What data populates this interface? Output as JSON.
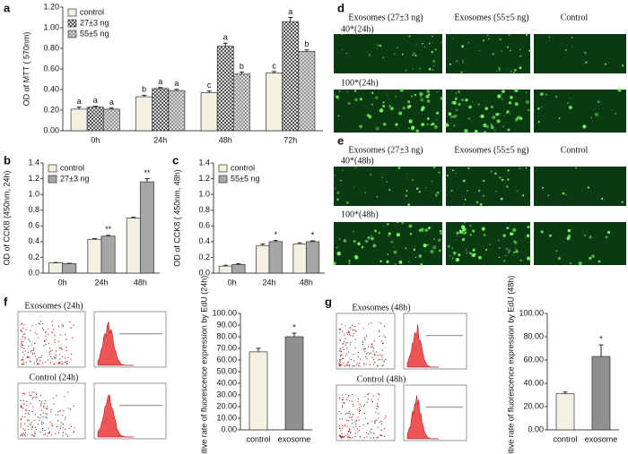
{
  "chart_data": [
    {
      "panel": "a",
      "type": "bar",
      "ylabel": "OD of MTT ( 570nm)",
      "categories": [
        "0h",
        "24h",
        "48h",
        "72h"
      ],
      "ylim": [
        0,
        1.2
      ],
      "yticks": [
        {
          "value": 0,
          "label": "0.00"
        },
        {
          "value": 0.2,
          "label": "0.20"
        },
        {
          "value": 0.4,
          "label": "0.40"
        },
        {
          "value": 0.6,
          "label": "0.60"
        },
        {
          "value": 0.8,
          "label": "0.80"
        },
        {
          "value": 1,
          "label": "1.00"
        },
        {
          "value": 1.2,
          "label": "1.20"
        }
      ],
      "legend": "upper left",
      "series": [
        {
          "name": "control",
          "color": "#f3f1e2",
          "values": [
            0.21,
            0.33,
            0.37,
            0.56
          ],
          "errors": [
            0.02,
            0.015,
            0.015,
            0.015
          ],
          "annotations": [
            "a",
            "b",
            "c",
            "c"
          ]
        },
        {
          "name": "27±3 ng",
          "color": "#555555",
          "pattern": "checker",
          "values": [
            0.23,
            0.41,
            0.82,
            1.06
          ],
          "errors": [
            0.008,
            0.01,
            0.03,
            0.04
          ],
          "annotations": [
            "a",
            "a",
            "a",
            "a"
          ]
        },
        {
          "name": "55±5 ng",
          "color": "#cccccc",
          "pattern": "crosshatch",
          "values": [
            0.21,
            0.39,
            0.55,
            0.77
          ],
          "errors": [
            0.01,
            0.012,
            0.02,
            0.015
          ],
          "annotations": [
            "a",
            "a",
            "b",
            "b"
          ]
        }
      ]
    },
    {
      "panel": "b",
      "type": "bar",
      "ylabel": "OD of CCK8 (450nm, 24h)",
      "categories": [
        "0h",
        "24h",
        "48h"
      ],
      "ylim": [
        0,
        1.4
      ],
      "yticks": [
        {
          "value": 0,
          "label": "0.0"
        },
        0.2,
        0.4,
        0.6,
        0.8,
        {
          "value": 1,
          "label": "1.0"
        },
        1.2,
        1.4
      ],
      "legend": "upper left",
      "series": [
        {
          "name": "control",
          "color": "#f3f1e2",
          "values": [
            0.13,
            0.43,
            0.7
          ],
          "errors": [
            0.005,
            0.008,
            0.01
          ],
          "annotations": [
            null,
            null,
            null
          ]
        },
        {
          "name": "27±3 ng",
          "color": "#a6a6a6",
          "values": [
            0.12,
            0.47,
            1.16
          ],
          "errors": [
            0.005,
            0.01,
            0.04
          ],
          "annotations": [
            null,
            "**",
            "**"
          ]
        }
      ]
    },
    {
      "panel": "c",
      "type": "bar",
      "ylabel": "OD of CCK8 ( 450nm, 48h)",
      "categories": [
        "0h",
        "24h",
        "48h"
      ],
      "ylim": [
        0,
        1.4
      ],
      "yticks": [
        {
          "value": 0,
          "label": "0.0"
        },
        0.2,
        0.4,
        0.6,
        0.8,
        {
          "value": 1,
          "label": "1.0"
        },
        1.2,
        1.4
      ],
      "legend": "upper left",
      "series": [
        {
          "name": "control",
          "color": "#f3f1e2",
          "values": [
            0.09,
            0.35,
            0.37
          ],
          "errors": [
            0.01,
            0.02,
            0.015
          ],
          "annotations": [
            null,
            null,
            null
          ]
        },
        {
          "name": "55±5 ng",
          "color": "#a6a6a6",
          "values": [
            0.11,
            0.4,
            0.4
          ],
          "errors": [
            0.01,
            0.015,
            0.01
          ],
          "annotations": [
            null,
            "*",
            "*"
          ]
        }
      ]
    },
    {
      "panel": "f",
      "type": "bar",
      "ylabel": "Positive rate of fluorescence expression by EdU (24h)",
      "categories": [
        "control",
        "exosome"
      ],
      "ylim": [
        0,
        100
      ],
      "yticks": [
        {
          "value": 0,
          "label": "0.00"
        },
        {
          "value": 10,
          "label": "10.00"
        },
        {
          "value": 20,
          "label": "20.00"
        },
        {
          "value": 30,
          "label": "30.00"
        },
        {
          "value": 40,
          "label": "40.00"
        },
        {
          "value": 50,
          "label": "50.00"
        },
        {
          "value": 60,
          "label": "60.00"
        },
        {
          "value": 70,
          "label": "70.00"
        },
        {
          "value": 80,
          "label": "80.00"
        },
        {
          "value": 90,
          "label": "90.00"
        },
        {
          "value": 100,
          "label": "100.00"
        }
      ],
      "series": [
        {
          "colors": [
            "#f3f1e2",
            "#8f8f8f"
          ],
          "values": [
            67,
            80
          ],
          "errors": [
            3,
            3
          ],
          "annotations": [
            null,
            "*"
          ]
        }
      ]
    },
    {
      "panel": "g",
      "type": "bar",
      "ylabel": "Positive rate of fluorescence expression by EdU (48h)",
      "categories": [
        "control",
        "exosome"
      ],
      "ylim": [
        0,
        100
      ],
      "yticks": [
        {
          "value": 0,
          "label": "0.00"
        },
        {
          "value": 20,
          "label": "20.00"
        },
        {
          "value": 40,
          "label": "40.00"
        },
        {
          "value": 60,
          "label": "60.00"
        },
        {
          "value": 80,
          "label": "80.00"
        },
        {
          "value": 100,
          "label": "100.00"
        }
      ],
      "series": [
        {
          "colors": [
            "#f3f1e2",
            "#8f8f8f"
          ],
          "values": [
            31,
            63
          ],
          "errors": [
            1.5,
            10
          ],
          "annotations": [
            null,
            "*"
          ]
        }
      ]
    }
  ],
  "micrographs": [
    {
      "panel": "d",
      "columns": [
        "Exosomes (27±3 ng)",
        "Exosomes (55±5 ng)",
        "Control"
      ],
      "rows": [
        "40*(24h)",
        "100*(24h)"
      ]
    },
    {
      "panel": "e",
      "columns": [
        "Exosomes (27±3 ng)",
        "Exosomes (55±5 ng)",
        "Control"
      ],
      "rows": [
        "40*(48h)",
        "100*(48h)"
      ]
    }
  ],
  "flow": [
    {
      "labels": [
        "Exosomes (24h)",
        "Control (24h)"
      ]
    },
    {
      "labels": [
        "Exosomes (48h)",
        "Control (48h)"
      ]
    }
  ]
}
